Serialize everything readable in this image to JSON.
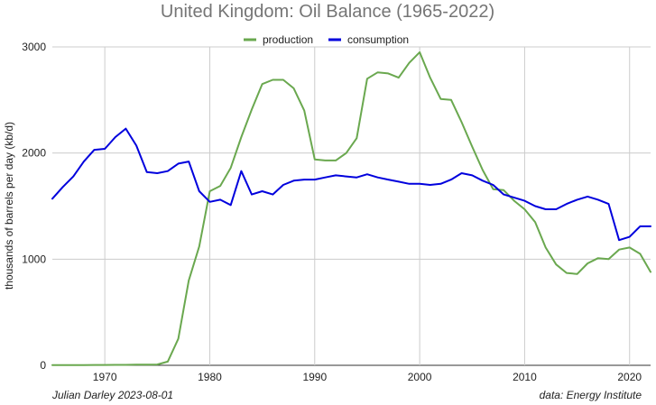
{
  "chart_data": {
    "type": "line",
    "title": "United Kingdom: Oil Balance (1965-2022)",
    "xlabel": "",
    "ylabel": "thousands of barrels per day (kb/d)",
    "xlim": [
      1965,
      2022
    ],
    "ylim": [
      0,
      3000
    ],
    "x_ticks": [
      1970,
      1980,
      1990,
      2000,
      2010,
      2020
    ],
    "y_ticks": [
      0,
      1000,
      2000,
      3000
    ],
    "grid": true,
    "legend_position": "top",
    "x": [
      1965,
      1966,
      1967,
      1968,
      1969,
      1970,
      1971,
      1972,
      1973,
      1974,
      1975,
      1976,
      1977,
      1978,
      1979,
      1980,
      1981,
      1982,
      1983,
      1984,
      1985,
      1986,
      1987,
      1988,
      1989,
      1990,
      1991,
      1992,
      1993,
      1994,
      1995,
      1996,
      1997,
      1998,
      1999,
      2000,
      2001,
      2002,
      2003,
      2004,
      2005,
      2006,
      2007,
      2008,
      2009,
      2010,
      2011,
      2012,
      2013,
      2014,
      2015,
      2016,
      2017,
      2018,
      2019,
      2020,
      2021,
      2022
    ],
    "series": [
      {
        "name": "production",
        "color": "#6aa84f",
        "values": [
          2,
          2,
          2,
          2,
          3,
          3,
          4,
          4,
          6,
          7,
          8,
          35,
          250,
          800,
          1120,
          1640,
          1690,
          1860,
          2150,
          2410,
          2650,
          2690,
          2690,
          2610,
          2400,
          1940,
          1930,
          1930,
          2000,
          2140,
          2700,
          2760,
          2750,
          2710,
          2850,
          2950,
          2710,
          2510,
          2500,
          2290,
          2060,
          1840,
          1660,
          1650,
          1550,
          1470,
          1350,
          1110,
          950,
          870,
          860,
          960,
          1010,
          1000,
          1090,
          1110,
          1050,
          880
        ]
      },
      {
        "name": "consumption",
        "color": "#0000dd",
        "values": [
          1570,
          1680,
          1780,
          1920,
          2030,
          2040,
          2150,
          2230,
          2070,
          1820,
          1810,
          1830,
          1900,
          1920,
          1640,
          1540,
          1560,
          1510,
          1830,
          1610,
          1640,
          1610,
          1700,
          1740,
          1750,
          1750,
          1770,
          1790,
          1780,
          1770,
          1800,
          1770,
          1750,
          1730,
          1710,
          1710,
          1700,
          1710,
          1750,
          1810,
          1790,
          1740,
          1700,
          1610,
          1580,
          1550,
          1500,
          1470,
          1470,
          1520,
          1560,
          1590,
          1560,
          1520,
          1180,
          1210,
          1310,
          1310
        ]
      }
    ],
    "footer_left": "Julian Darley  2023-08-01",
    "footer_right": "data: Energy Institute"
  }
}
